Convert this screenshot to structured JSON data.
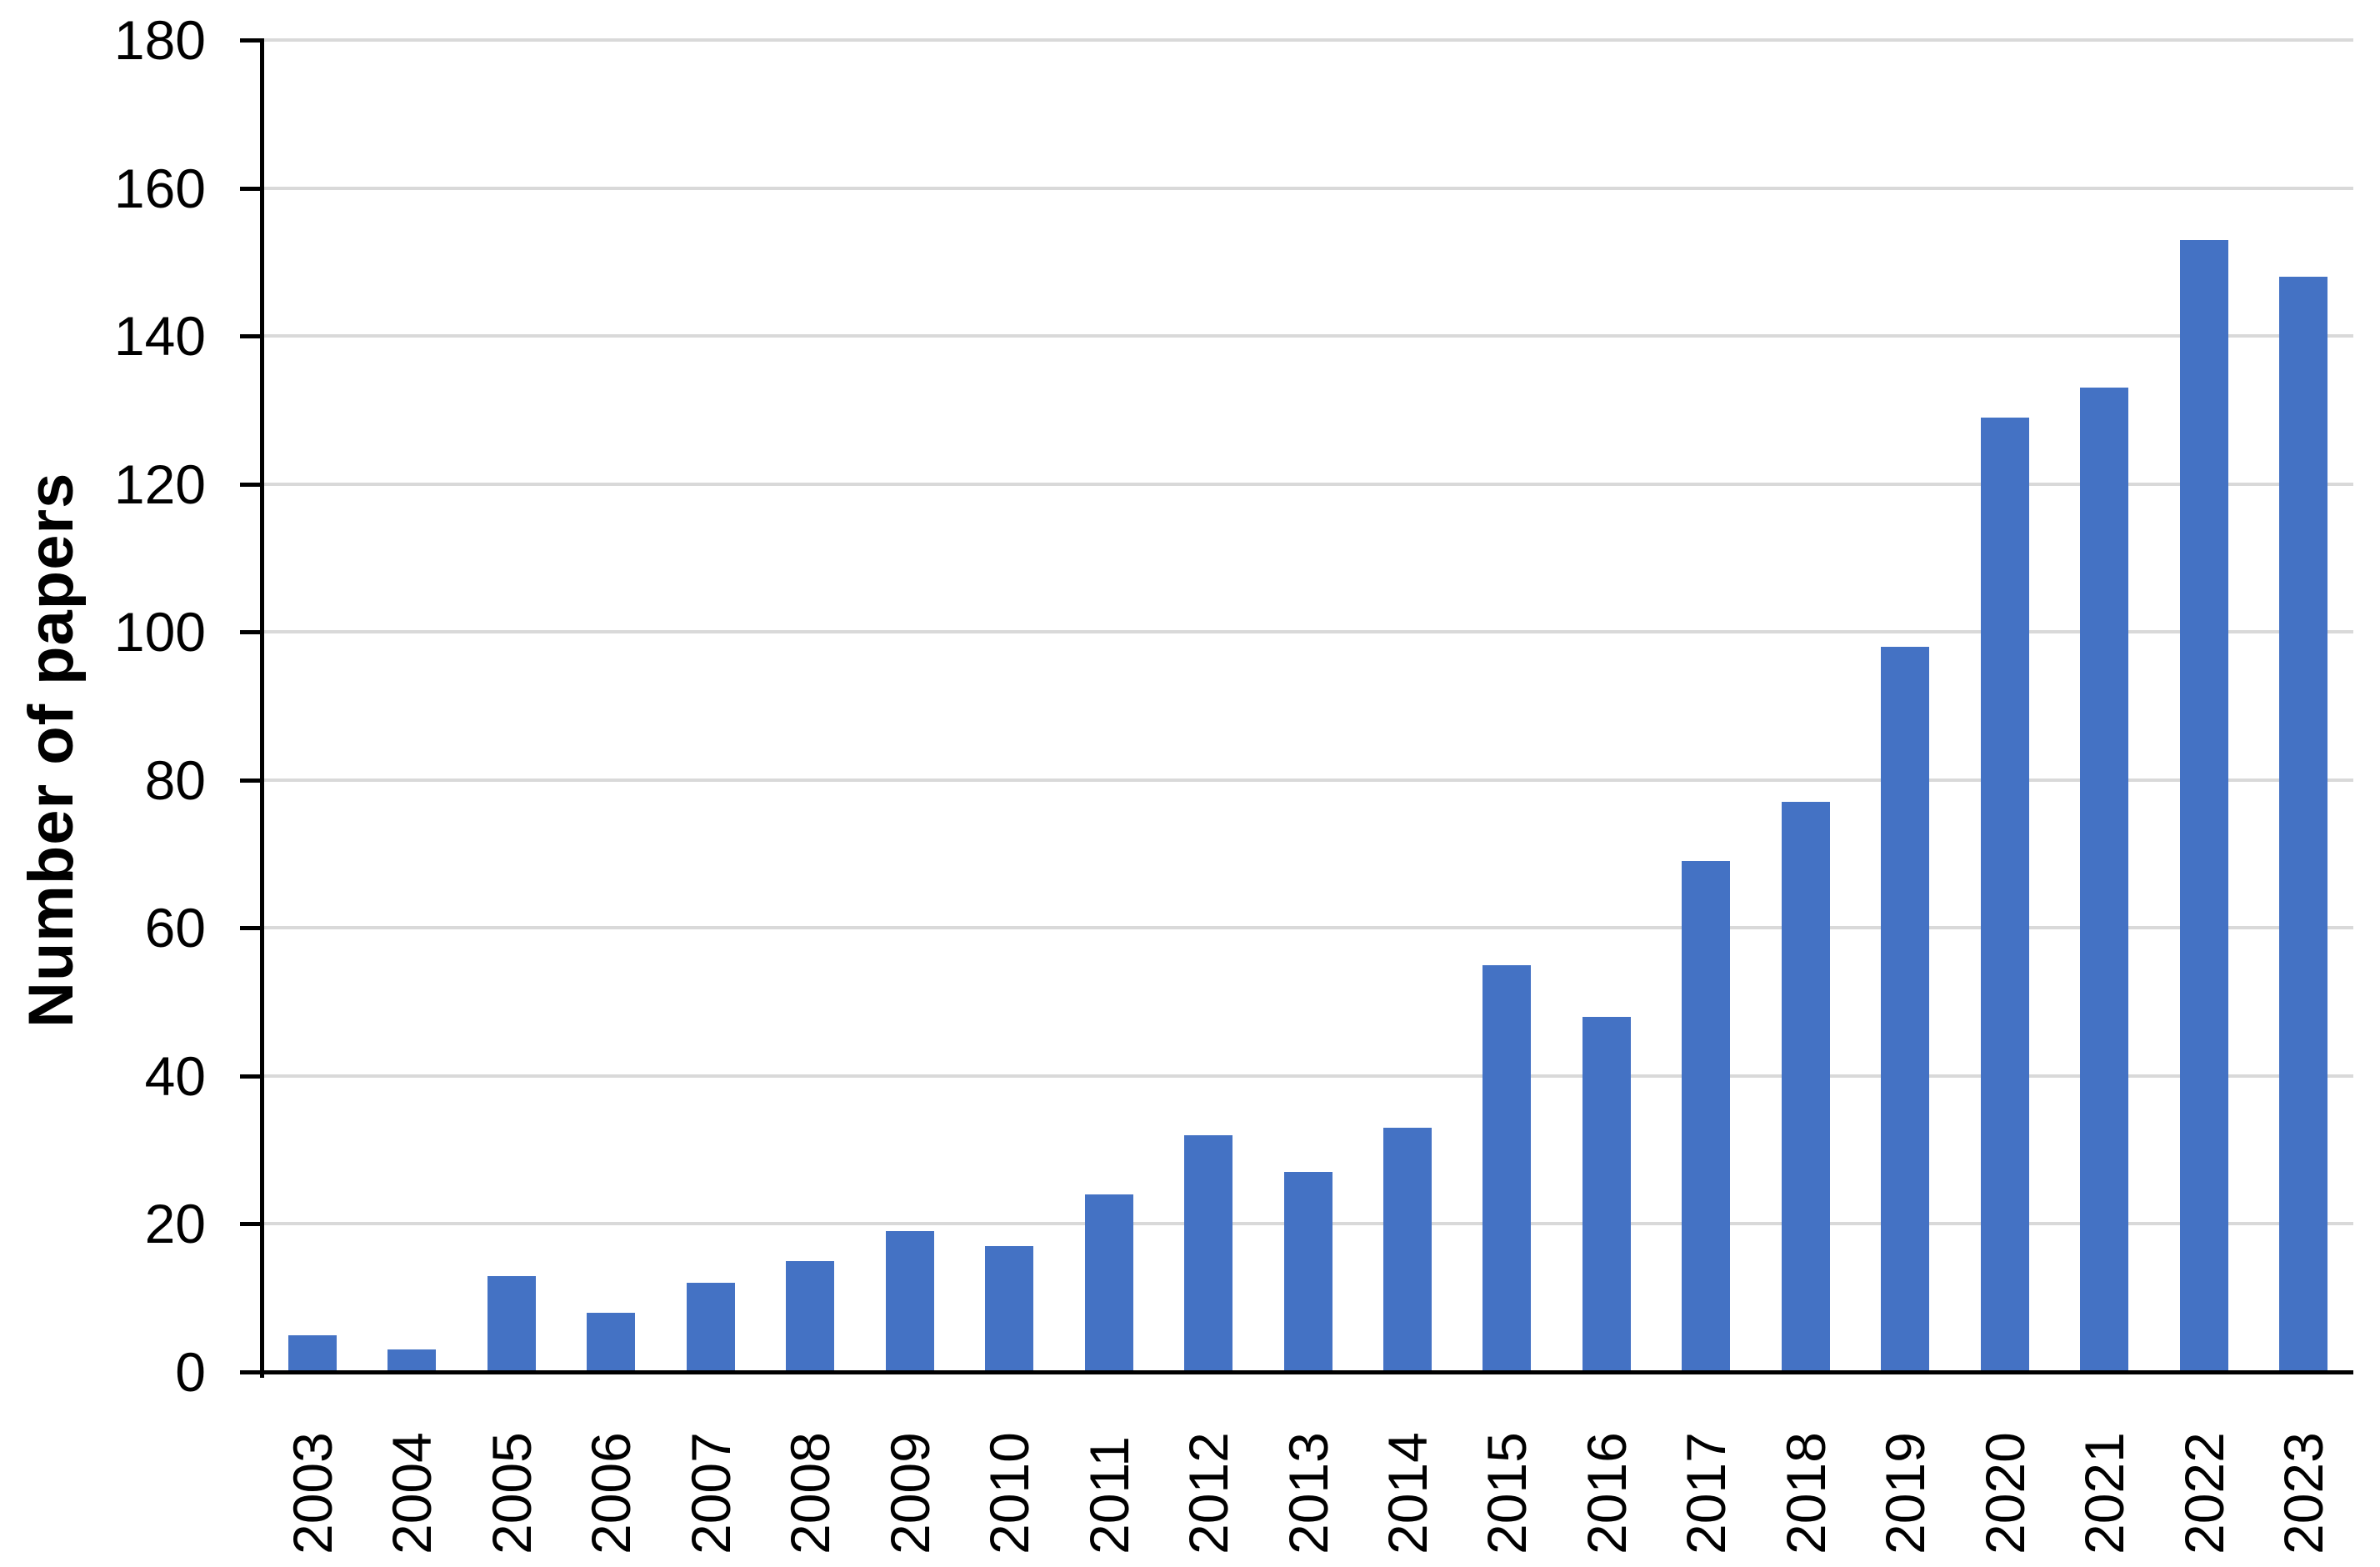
{
  "chart_data": {
    "type": "bar",
    "title": "",
    "categories": [
      "2003",
      "2004",
      "2005",
      "2006",
      "2007",
      "2008",
      "2009",
      "2010",
      "2011",
      "2012",
      "2013",
      "2014",
      "2015",
      "2016",
      "2017",
      "2018",
      "2019",
      "2020",
      "2021",
      "2022",
      "2023"
    ],
    "values": [
      5,
      3,
      13,
      8,
      12,
      15,
      19,
      17,
      24,
      32,
      27,
      33,
      55,
      48,
      69,
      77,
      98,
      129,
      133,
      153,
      148
    ],
    "series": [
      {
        "name": "Number of papers",
        "values": [
          5,
          3,
          13,
          8,
          12,
          15,
          19,
          17,
          24,
          32,
          27,
          33,
          55,
          48,
          69,
          77,
          98,
          129,
          133,
          153,
          148
        ]
      }
    ],
    "xlabel": "",
    "ylabel": "Number of papers",
    "ylim": [
      0,
      180
    ],
    "yticks": [
      0,
      20,
      40,
      60,
      80,
      100,
      120,
      140,
      160,
      180
    ],
    "grid": true,
    "legend_position": "none",
    "bar_color": "#4472C4",
    "gridline_color": "#D9D9D9",
    "axis_color": "#000000",
    "text_color": "#000000",
    "background_color": "#FFFFFF"
  }
}
